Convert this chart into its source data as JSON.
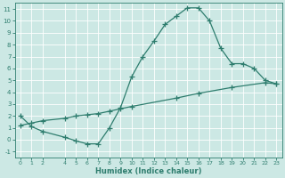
{
  "xlabel": "Humidex (Indice chaleur)",
  "ylabel": "",
  "xlim": [
    -0.5,
    23.5
  ],
  "ylim": [
    -1.5,
    11.5
  ],
  "xticks": [
    0,
    1,
    2,
    4,
    5,
    6,
    7,
    8,
    9,
    10,
    11,
    12,
    13,
    14,
    15,
    16,
    17,
    18,
    19,
    20,
    21,
    22,
    23
  ],
  "yticks": [
    -1,
    0,
    1,
    2,
    3,
    4,
    5,
    6,
    7,
    8,
    9,
    10,
    11
  ],
  "bg_color": "#cce8e4",
  "line_color": "#2e7d6e",
  "grid_color": "#b0d8d0",
  "curve1_x": [
    0,
    1,
    2,
    4,
    5,
    6,
    7,
    8,
    9,
    10,
    11,
    12,
    13,
    14,
    15,
    16,
    17,
    18,
    19,
    20,
    21,
    22,
    23
  ],
  "curve1_y": [
    2.0,
    1.1,
    0.7,
    0.2,
    -0.1,
    -0.35,
    -0.35,
    1.0,
    2.7,
    5.3,
    7.0,
    8.3,
    9.7,
    10.4,
    11.1,
    11.1,
    10.0,
    7.7,
    6.4,
    6.4,
    6.0,
    5.0,
    4.7
  ],
  "curve2_x": [
    0,
    1,
    2,
    4,
    5,
    6,
    7,
    8,
    9,
    10,
    14,
    16,
    19,
    22,
    23
  ],
  "curve2_y": [
    1.2,
    1.4,
    1.6,
    1.8,
    2.0,
    2.1,
    2.2,
    2.4,
    2.6,
    2.8,
    3.5,
    3.9,
    4.4,
    4.8,
    4.7
  ],
  "marker": "+",
  "markersize": 4,
  "markeredgewidth": 0.9,
  "linewidth": 0.9
}
